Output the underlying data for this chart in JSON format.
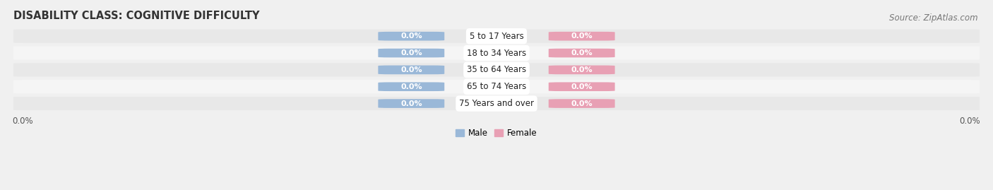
{
  "title": "DISABILITY CLASS: COGNITIVE DIFFICULTY",
  "source": "Source: ZipAtlas.com",
  "categories": [
    "5 to 17 Years",
    "18 to 34 Years",
    "35 to 64 Years",
    "65 to 74 Years",
    "75 Years and over"
  ],
  "male_values": [
    0.0,
    0.0,
    0.0,
    0.0,
    0.0
  ],
  "female_values": [
    0.0,
    0.0,
    0.0,
    0.0,
    0.0
  ],
  "male_color": "#9ab8d8",
  "female_color": "#e8a0b4",
  "male_label": "Male",
  "female_label": "Female",
  "bar_height": 0.62,
  "background_color": "#f0f0f0",
  "row_color_odd": "#e8e8e8",
  "row_color_even": "#f5f5f5",
  "title_fontsize": 10.5,
  "label_fontsize": 8.0,
  "tick_fontsize": 8.5,
  "source_fontsize": 8.5,
  "value_label_color": "white",
  "category_label_color": "#222222"
}
